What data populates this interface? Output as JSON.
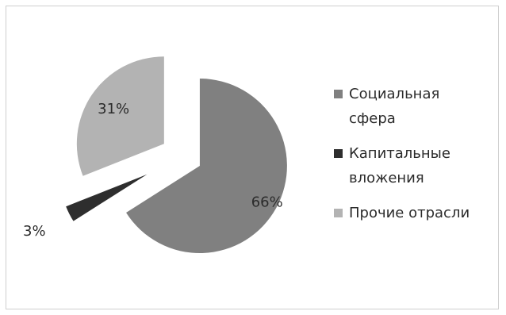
{
  "chart_data": {
    "type": "pie",
    "title": "",
    "exploded": true,
    "legend_position": "right",
    "start_angle": "top, clockwise",
    "slices": [
      {
        "label": "Социальная сфера",
        "legend_lines": [
          "Социальная",
          "сфера"
        ],
        "value": 66,
        "display": "66%",
        "color": "#808080"
      },
      {
        "label": "Капитальные вложения",
        "legend_lines": [
          "Капитальные",
          "вложения"
        ],
        "value": 3,
        "display": "3%",
        "color": "#2e2e2e"
      },
      {
        "label": "Прочие отрасли",
        "legend_lines": [
          "Прочие отрасли"
        ],
        "value": 31,
        "display": "31%",
        "color": "#b3b3b3"
      }
    ]
  }
}
